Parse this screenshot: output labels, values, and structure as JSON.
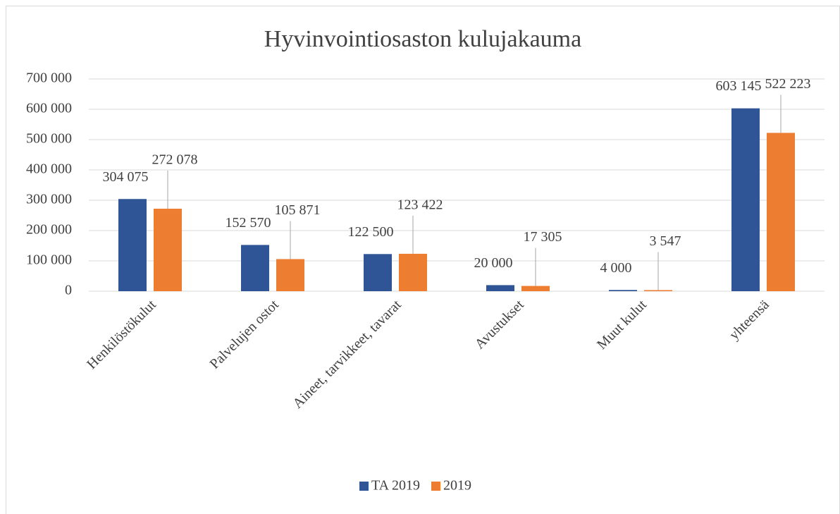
{
  "chart_data": {
    "type": "bar",
    "title": "Hyvinvointiosaston kulujakauma",
    "categories": [
      "Henkilöstökulut",
      "Palvelujen ostot",
      "Aineet, tarvikkeet, tavarat",
      "Avustukset",
      "Muut kulut",
      "yhteensä"
    ],
    "series": [
      {
        "name": "TA 2019",
        "color": "#2f5597",
        "values": [
          304075,
          152570,
          122500,
          20000,
          4000,
          603145
        ],
        "value_labels": [
          "304 075",
          "152 570",
          "122 500",
          "20 000",
          "4 000",
          "603 145"
        ]
      },
      {
        "name": "2019",
        "color": "#ed7d31",
        "values": [
          272078,
          105871,
          123422,
          17305,
          3547,
          522223
        ],
        "value_labels": [
          "272 078",
          "105 871",
          "123 422",
          "17 305",
          "3 547",
          "522 223"
        ]
      }
    ],
    "ylim": [
      0,
      700000
    ],
    "yticks": [
      0,
      {
        "value": 100000,
        "label": "100 000"
      },
      {
        "value": 200000,
        "label": "200 000"
      },
      {
        "value": 300000,
        "label": "300 000"
      },
      {
        "value": 400000,
        "label": "400 000"
      },
      {
        "value": 500000,
        "label": "500 000"
      },
      {
        "value": 600000,
        "label": "600 000"
      },
      {
        "value": 700000,
        "label": "700 000"
      }
    ],
    "grid": true,
    "legend": "bottom"
  }
}
